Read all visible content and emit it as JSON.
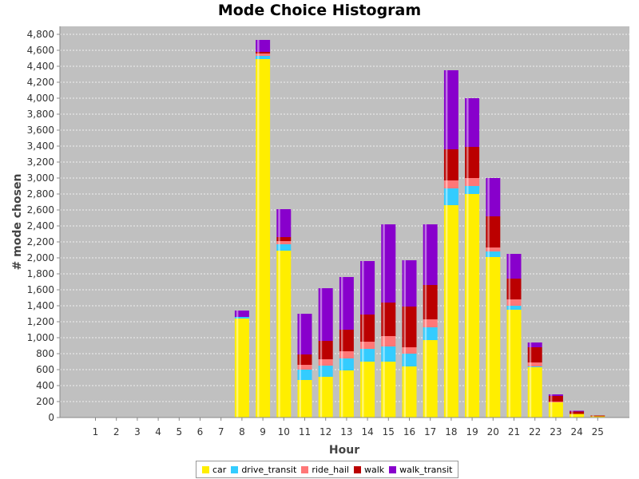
{
  "chart_data": {
    "type": "bar",
    "stacked": true,
    "title": "Mode Choice Histogram",
    "xlabel": "Hour",
    "ylabel": "# mode chosen",
    "ylim": [
      0,
      4900
    ],
    "yticks": [
      0,
      200,
      400,
      600,
      800,
      1000,
      1200,
      1400,
      1600,
      1800,
      2000,
      2200,
      2400,
      2600,
      2800,
      3000,
      3200,
      3400,
      3600,
      3800,
      4000,
      4200,
      4400,
      4600,
      4800
    ],
    "ytick_labels": [
      "0",
      "200",
      "400",
      "600",
      "800",
      "1,000",
      "1,200",
      "1,400",
      "1,600",
      "1,800",
      "2,000",
      "2,200",
      "2,400",
      "2,600",
      "2,800",
      "3,000",
      "3,200",
      "3,400",
      "3,600",
      "3,800",
      "4,000",
      "4,200",
      "4,400",
      "4,600",
      "4,800"
    ],
    "grid": true,
    "legend_position": "bottom-center",
    "background": "#c0c0c0",
    "categories": [
      "1",
      "2",
      "3",
      "4",
      "5",
      "6",
      "7",
      "8",
      "9",
      "10",
      "11",
      "12",
      "13",
      "14",
      "15",
      "16",
      "17",
      "18",
      "19",
      "20",
      "21",
      "22",
      "23",
      "24",
      "25"
    ],
    "series": [
      {
        "name": "car",
        "color": "#ffee00",
        "values": [
          0,
          0,
          0,
          0,
          0,
          0,
          0,
          1240,
          4490,
          2090,
          470,
          510,
          590,
          700,
          700,
          640,
          970,
          2660,
          2800,
          2010,
          1350,
          630,
          190,
          45,
          15
        ]
      },
      {
        "name": "drive_transit",
        "color": "#33ccff",
        "values": [
          0,
          0,
          0,
          0,
          0,
          0,
          0,
          20,
          40,
          80,
          130,
          140,
          150,
          160,
          190,
          160,
          160,
          210,
          100,
          70,
          50,
          10,
          0,
          0,
          0
        ]
      },
      {
        "name": "ride_hail",
        "color": "#ff7777",
        "values": [
          0,
          0,
          0,
          0,
          0,
          0,
          0,
          0,
          30,
          40,
          60,
          80,
          90,
          90,
          130,
          80,
          100,
          100,
          100,
          50,
          80,
          50,
          10,
          0,
          0
        ]
      },
      {
        "name": "walk",
        "color": "#bb0000",
        "values": [
          0,
          0,
          0,
          0,
          0,
          0,
          0,
          0,
          20,
          50,
          130,
          230,
          270,
          340,
          420,
          510,
          430,
          390,
          390,
          390,
          260,
          190,
          70,
          30,
          10
        ]
      },
      {
        "name": "walk_transit",
        "color": "#8800cc",
        "values": [
          0,
          0,
          0,
          0,
          0,
          0,
          0,
          80,
          150,
          350,
          510,
          660,
          660,
          670,
          980,
          580,
          760,
          990,
          610,
          480,
          310,
          60,
          20,
          10,
          0
        ]
      }
    ]
  }
}
